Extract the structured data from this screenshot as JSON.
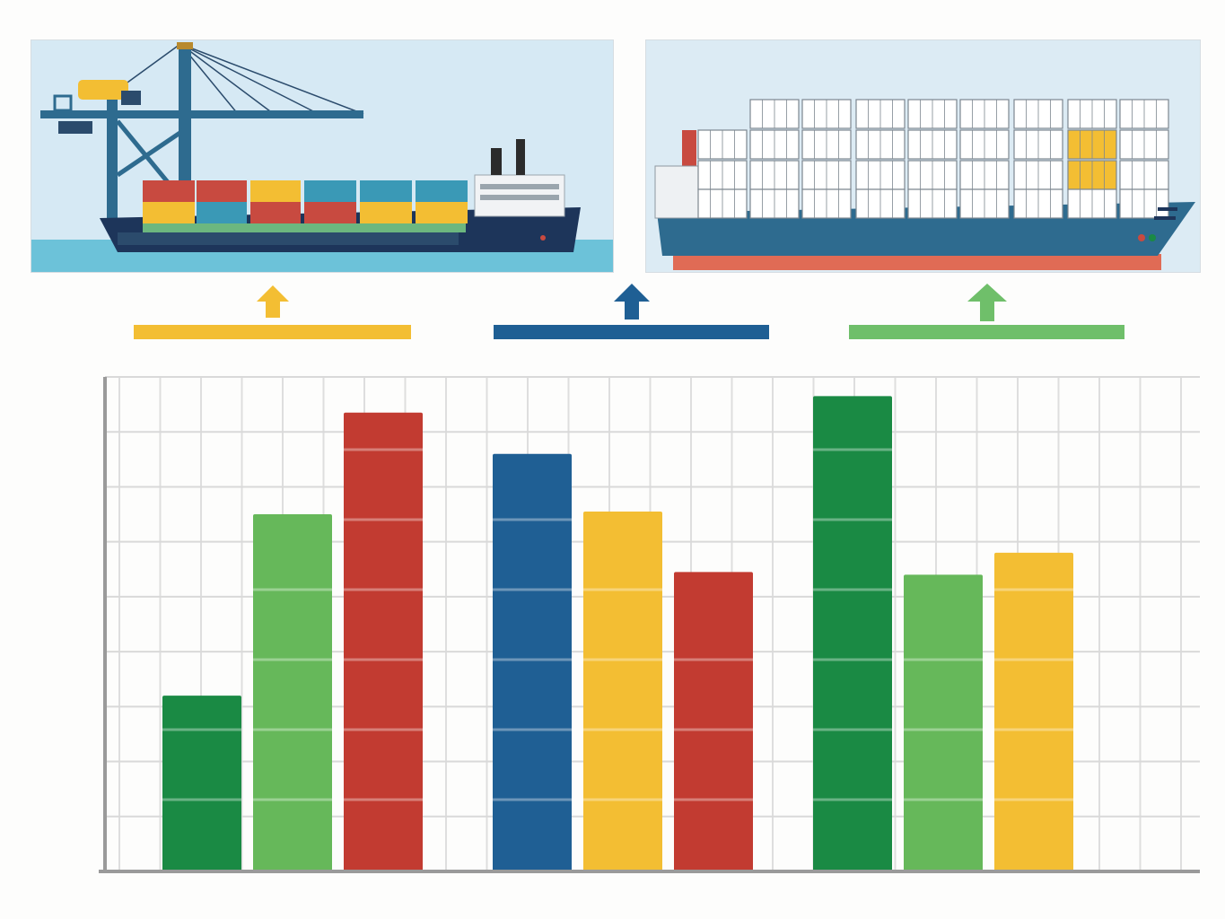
{
  "chart_data": {
    "type": "bar",
    "title": "",
    "xlabel": "",
    "ylabel": "",
    "ylim": [
      0,
      9
    ],
    "grid": true,
    "legend": "none",
    "y_ticks": [
      0,
      1,
      2,
      3,
      4,
      5,
      6,
      7,
      8,
      9
    ],
    "y_tick_labels": [
      "",
      "",
      "",
      "",
      "",
      "",
      "",
      "",
      "",
      ""
    ],
    "groups": [
      {
        "bars": [
          {
            "value": 3.2,
            "color": "#1a8a44",
            "label": ""
          },
          {
            "value": 6.5,
            "color": "#66b85a",
            "label": ""
          },
          {
            "value": 8.35,
            "color": "#c23b31",
            "label": ""
          }
        ]
      },
      {
        "bars": [
          {
            "value": 7.6,
            "color": "#1f5f94",
            "label": ""
          },
          {
            "value": 6.55,
            "color": "#f3be33",
            "label": ""
          },
          {
            "value": 5.45,
            "color": "#c23b31",
            "label": ""
          }
        ]
      },
      {
        "bars": [
          {
            "value": 8.65,
            "color": "#1a8a44",
            "label": ""
          },
          {
            "value": 5.4,
            "color": "#66b85a",
            "label": ""
          },
          {
            "value": 5.8,
            "color": "#f3be33",
            "label": ""
          }
        ]
      }
    ]
  },
  "indicators": [
    {
      "color": "#f3be33",
      "icon": "up-arrow-icon"
    },
    {
      "color": "#1f5f94",
      "icon": "up-arrow-icon"
    },
    {
      "color": "#6fbf6a",
      "icon": "up-arrow-icon"
    }
  ],
  "illustrations": [
    {
      "name": "port-crane-with-container-ship"
    },
    {
      "name": "large-container-ship"
    }
  ]
}
